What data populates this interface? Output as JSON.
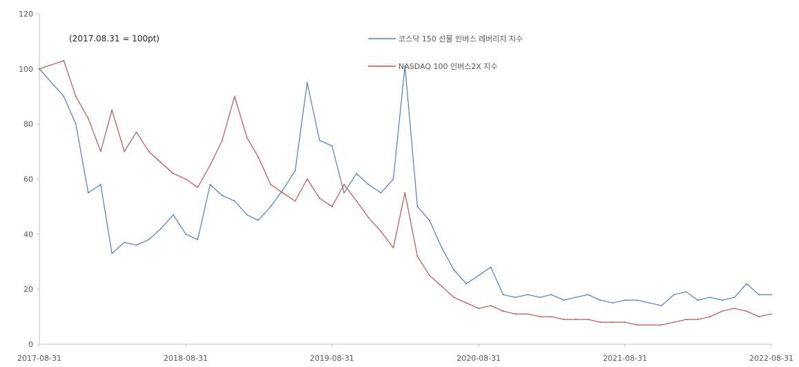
{
  "chart_data": {
    "type": "line",
    "title": "",
    "annotation": "(2017.08.31 = 100pt)",
    "xlabel": "",
    "ylabel": "",
    "ylim": [
      0,
      120
    ],
    "yticks": [
      "0",
      "20",
      "40",
      "60",
      "80",
      "100",
      "120"
    ],
    "xticks": [
      "2017-08-31",
      "2018-08-31",
      "2019-08-31",
      "2020-08-31",
      "2021-08-31",
      "2022-08-31"
    ],
    "grid": false,
    "legend_position": "top-center",
    "x": [
      "2017-08-31",
      "2017-10-31",
      "2017-11-30",
      "2017-12-31",
      "2018-01-31",
      "2018-02-28",
      "2018-03-31",
      "2018-04-30",
      "2018-05-31",
      "2018-06-30",
      "2018-07-31",
      "2018-08-31",
      "2018-09-30",
      "2018-10-31",
      "2018-11-30",
      "2018-12-31",
      "2019-01-31",
      "2019-02-28",
      "2019-03-31",
      "2019-04-30",
      "2019-05-31",
      "2019-06-30",
      "2019-07-31",
      "2019-08-31",
      "2019-09-30",
      "2019-10-31",
      "2019-11-30",
      "2019-12-31",
      "2020-01-31",
      "2020-02-29",
      "2020-03-31",
      "2020-04-30",
      "2020-05-31",
      "2020-06-30",
      "2020-07-31",
      "2020-08-31",
      "2020-09-30",
      "2020-10-31",
      "2020-11-30",
      "2020-12-31",
      "2021-01-31",
      "2021-02-28",
      "2021-03-31",
      "2021-04-30",
      "2021-05-31",
      "2021-06-30",
      "2021-07-31",
      "2021-08-31",
      "2021-09-30",
      "2021-10-31",
      "2021-11-30",
      "2021-12-31",
      "2022-01-31",
      "2022-02-28",
      "2022-03-31",
      "2022-04-30",
      "2022-05-31",
      "2022-06-30",
      "2022-07-31",
      "2022-08-31"
    ],
    "series": [
      {
        "name": "코스닥 150 선물 인버스 레버리지 지수",
        "color": "#4a7ebb",
        "values": [
          100,
          90,
          80,
          55,
          58,
          33,
          37,
          36,
          38,
          42,
          47,
          40,
          38,
          58,
          54,
          52,
          47,
          45,
          50,
          56,
          63,
          95,
          74,
          72,
          55,
          62,
          58,
          55,
          60,
          101,
          50,
          45,
          35,
          27,
          22,
          25,
          28,
          18,
          17,
          18,
          17,
          18,
          16,
          17,
          18,
          16,
          15,
          16,
          16,
          15,
          14,
          18,
          19,
          16,
          17,
          16,
          17,
          22,
          18,
          18
        ]
      },
      {
        "name": "NASDAQ 100 인버스2X 지수",
        "color": "#c0504d",
        "values": [
          100,
          103,
          90,
          82,
          70,
          85,
          70,
          77,
          70,
          66,
          62,
          60,
          57,
          65,
          74,
          90,
          75,
          68,
          58,
          55,
          52,
          60,
          53,
          50,
          58,
          52,
          46,
          41,
          35,
          55,
          32,
          25,
          21,
          17,
          15,
          13,
          14,
          12,
          11,
          11,
          10,
          10,
          9,
          9,
          9,
          8,
          8,
          8,
          7,
          7,
          7,
          8,
          9,
          9,
          10,
          12,
          13,
          12,
          10,
          11
        ]
      }
    ]
  }
}
